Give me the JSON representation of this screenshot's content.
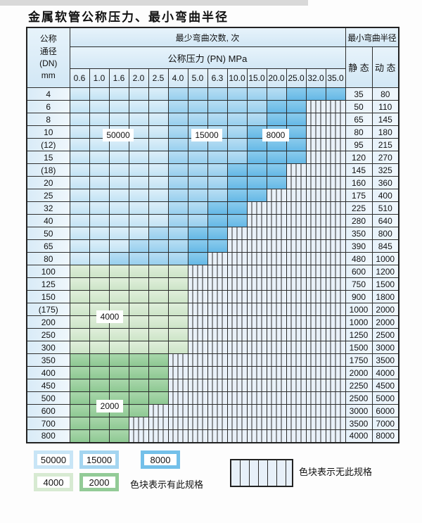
{
  "page": {
    "title": "金属软管公称压力、最小弯曲半径"
  },
  "table": {
    "header": {
      "dn_label_lines": "公称\n通径\n(DN)\nmm",
      "bend_cycles_label": "最少弯曲次数, 次",
      "pressure_label": "公称压力 (PN) MPa",
      "pressure_columns": [
        "0.6",
        "1.0",
        "1.6",
        "2.0",
        "2.5",
        "4.0",
        "5.0",
        "6.3",
        "10.0",
        "15.0",
        "20.0",
        "25.0",
        "32.0",
        "35.0"
      ],
      "radius_label": "最小弯曲半径",
      "static_label": "静 态",
      "dynamic_label": "动 态"
    },
    "zone_colors": {
      "50000": "#c2e3f4",
      "15000": "#97cfee",
      "8000": "#64b8e6",
      "4000": "#cce4c7",
      "2000": "#8dc892",
      "no_spec": "hatched"
    },
    "rows": [
      {
        "dn": "4",
        "static": "35",
        "dynamic": "80",
        "cells": [
          "50000",
          "50000",
          "50000",
          "50000",
          "50000",
          "15000",
          "15000",
          "15000",
          "15000",
          "15000",
          "15000",
          "8000",
          "8000",
          "8000"
        ]
      },
      {
        "dn": "6",
        "static": "50",
        "dynamic": "110",
        "cells": [
          "50000",
          "50000",
          "50000",
          "50000",
          "50000",
          "15000",
          "15000",
          "15000",
          "15000",
          "15000",
          "8000",
          "8000",
          "",
          ""
        ]
      },
      {
        "dn": "8",
        "static": "65",
        "dynamic": "145",
        "cells": [
          "50000",
          "50000",
          "50000",
          "50000",
          "50000",
          "15000",
          "15000",
          "15000",
          "15000",
          "15000",
          "8000",
          "8000",
          "",
          ""
        ]
      },
      {
        "dn": "10",
        "static": "80",
        "dynamic": "180",
        "cells": [
          "50000",
          "50000",
          "50000",
          "50000",
          "50000",
          "15000",
          "15000",
          "15000",
          "15000",
          "8000",
          "8000",
          "8000",
          "",
          ""
        ]
      },
      {
        "dn": "(12)",
        "static": "95",
        "dynamic": "215",
        "cells": [
          "50000",
          "50000",
          "50000",
          "50000",
          "50000",
          "15000",
          "15000",
          "15000",
          "15000",
          "8000",
          "8000",
          "8000",
          "",
          ""
        ]
      },
      {
        "dn": "15",
        "static": "120",
        "dynamic": "270",
        "cells": [
          "50000",
          "50000",
          "50000",
          "50000",
          "50000",
          "15000",
          "15000",
          "15000",
          "15000",
          "8000",
          "8000",
          "8000",
          "",
          ""
        ]
      },
      {
        "dn": "(18)",
        "static": "145",
        "dynamic": "325",
        "cells": [
          "50000",
          "50000",
          "50000",
          "50000",
          "50000",
          "15000",
          "15000",
          "15000",
          "8000",
          "8000",
          "8000",
          "",
          "",
          ""
        ]
      },
      {
        "dn": "20",
        "static": "160",
        "dynamic": "360",
        "cells": [
          "50000",
          "50000",
          "50000",
          "50000",
          "50000",
          "15000",
          "15000",
          "15000",
          "8000",
          "8000",
          "8000",
          "",
          "",
          ""
        ]
      },
      {
        "dn": "25",
        "static": "175",
        "dynamic": "400",
        "cells": [
          "50000",
          "50000",
          "50000",
          "50000",
          "50000",
          "15000",
          "15000",
          "15000",
          "8000",
          "8000",
          "",
          "",
          "",
          ""
        ]
      },
      {
        "dn": "32",
        "static": "225",
        "dynamic": "510",
        "cells": [
          "50000",
          "50000",
          "50000",
          "50000",
          "50000",
          "15000",
          "15000",
          "8000",
          "8000",
          "",
          "",
          "",
          "",
          ""
        ]
      },
      {
        "dn": "40",
        "static": "280",
        "dynamic": "640",
        "cells": [
          "50000",
          "50000",
          "50000",
          "50000",
          "50000",
          "15000",
          "15000",
          "8000",
          "8000",
          "",
          "",
          "",
          "",
          ""
        ]
      },
      {
        "dn": "50",
        "static": "350",
        "dynamic": "800",
        "cells": [
          "50000",
          "50000",
          "50000",
          "50000",
          "15000",
          "15000",
          "8000",
          "8000",
          "",
          "",
          "",
          "",
          "",
          ""
        ]
      },
      {
        "dn": "65",
        "static": "390",
        "dynamic": "845",
        "cells": [
          "50000",
          "50000",
          "50000",
          "15000",
          "15000",
          "15000",
          "8000",
          "8000",
          "",
          "",
          "",
          "",
          "",
          ""
        ]
      },
      {
        "dn": "80",
        "static": "480",
        "dynamic": "1000",
        "cells": [
          "50000",
          "50000",
          "15000",
          "15000",
          "15000",
          "15000",
          "8000",
          "",
          "",
          "",
          "",
          "",
          "",
          ""
        ]
      },
      {
        "dn": "100",
        "static": "600",
        "dynamic": "1200",
        "cells": [
          "4000",
          "4000",
          "4000",
          "4000",
          "4000",
          "4000",
          "",
          "",
          "",
          "",
          "",
          "",
          "",
          ""
        ]
      },
      {
        "dn": "125",
        "static": "750",
        "dynamic": "1500",
        "cells": [
          "4000",
          "4000",
          "4000",
          "4000",
          "4000",
          "4000",
          "",
          "",
          "",
          "",
          "",
          "",
          "",
          ""
        ]
      },
      {
        "dn": "150",
        "static": "900",
        "dynamic": "1800",
        "cells": [
          "4000",
          "4000",
          "4000",
          "4000",
          "4000",
          "4000",
          "",
          "",
          "",
          "",
          "",
          "",
          "",
          ""
        ]
      },
      {
        "dn": "(175)",
        "static": "1000",
        "dynamic": "2000",
        "cells": [
          "4000",
          "4000",
          "4000",
          "4000",
          "4000",
          "4000",
          "",
          "",
          "",
          "",
          "",
          "",
          "",
          ""
        ]
      },
      {
        "dn": "200",
        "static": "1000",
        "dynamic": "2000",
        "cells": [
          "4000",
          "4000",
          "4000",
          "4000",
          "4000",
          "4000",
          "",
          "",
          "",
          "",
          "",
          "",
          "",
          ""
        ]
      },
      {
        "dn": "250",
        "static": "1250",
        "dynamic": "2500",
        "cells": [
          "4000",
          "4000",
          "4000",
          "4000",
          "4000",
          "4000",
          "",
          "",
          "",
          "",
          "",
          "",
          "",
          ""
        ]
      },
      {
        "dn": "300",
        "static": "1500",
        "dynamic": "3000",
        "cells": [
          "4000",
          "4000",
          "4000",
          "4000",
          "4000",
          "4000",
          "",
          "",
          "",
          "",
          "",
          "",
          "",
          ""
        ]
      },
      {
        "dn": "350",
        "static": "1750",
        "dynamic": "3500",
        "cells": [
          "2000",
          "2000",
          "2000",
          "2000",
          "2000",
          "",
          "",
          "",
          "",
          "",
          "",
          "",
          "",
          ""
        ]
      },
      {
        "dn": "400",
        "static": "2000",
        "dynamic": "4000",
        "cells": [
          "2000",
          "2000",
          "2000",
          "2000",
          "2000",
          "",
          "",
          "",
          "",
          "",
          "",
          "",
          "",
          ""
        ]
      },
      {
        "dn": "450",
        "static": "2250",
        "dynamic": "4500",
        "cells": [
          "2000",
          "2000",
          "2000",
          "2000",
          "2000",
          "",
          "",
          "",
          "",
          "",
          "",
          "",
          "",
          ""
        ]
      },
      {
        "dn": "500",
        "static": "2500",
        "dynamic": "5000",
        "cells": [
          "2000",
          "2000",
          "2000",
          "2000",
          "2000",
          "",
          "",
          "",
          "",
          "",
          "",
          "",
          "",
          ""
        ]
      },
      {
        "dn": "600",
        "static": "3000",
        "dynamic": "6000",
        "cells": [
          "2000",
          "2000",
          "2000",
          "2000",
          "",
          "",
          "",
          "",
          "",
          "",
          "",
          "",
          "",
          ""
        ]
      },
      {
        "dn": "700",
        "static": "3500",
        "dynamic": "7000",
        "cells": [
          "2000",
          "2000",
          "2000",
          "",
          "",
          "",
          "",
          "",
          "",
          "",
          "",
          "",
          "",
          ""
        ]
      },
      {
        "dn": "800",
        "static": "4000",
        "dynamic": "8000",
        "cells": [
          "2000",
          "2000",
          "2000",
          "",
          "",
          "",
          "",
          "",
          "",
          "",
          "",
          "",
          "",
          ""
        ]
      }
    ],
    "overlay_labels": {
      "l50000": "50000",
      "l15000": "15000",
      "l8000": "8000",
      "l4000": "4000",
      "l2000": "2000"
    }
  },
  "legend": {
    "sw50000": "50000",
    "sw15000": "15000",
    "sw8000": "8000",
    "sw4000": "4000",
    "sw2000": "2000",
    "has_spec_note": "色块表示有此规格",
    "no_spec_note": "色块表示无此规格"
  }
}
